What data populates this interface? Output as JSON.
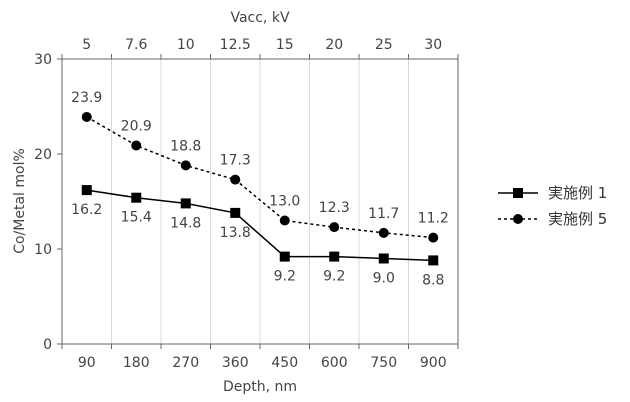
{
  "chart_data": {
    "type": "line",
    "xlabel": "Depth, nm",
    "x2label": "Vacc, kV",
    "ylabel": "Co/Metal mol%",
    "categories": [
      "90",
      "180",
      "270",
      "360",
      "450",
      "600",
      "750",
      "900"
    ],
    "top_categories": [
      "5",
      "7.6",
      "10",
      "12.5",
      "15",
      "20",
      "25",
      "30"
    ],
    "ylim": [
      0,
      30
    ],
    "yticks": [
      "0",
      "10",
      "20",
      "30"
    ],
    "grid": "vertical",
    "legend_position": "right",
    "series": [
      {
        "name": "実施例 1",
        "values": [
          16.2,
          15.4,
          14.8,
          13.8,
          9.2,
          9.2,
          9.0,
          8.8
        ],
        "labels": [
          "16.2",
          "15.4",
          "14.8",
          "13.8",
          "9.2",
          "9.2",
          "9.0",
          "8.8"
        ],
        "marker": "square",
        "line": "solid",
        "color": "#000000"
      },
      {
        "name": "実施例 5",
        "values": [
          23.9,
          20.9,
          18.8,
          17.3,
          13.0,
          12.3,
          11.7,
          11.2
        ],
        "labels": [
          "23.9",
          "20.9",
          "18.8",
          "17.3",
          "13.0",
          "12.3",
          "11.7",
          "11.2"
        ],
        "marker": "circle",
        "line": "dashed",
        "color": "#000000"
      }
    ]
  }
}
